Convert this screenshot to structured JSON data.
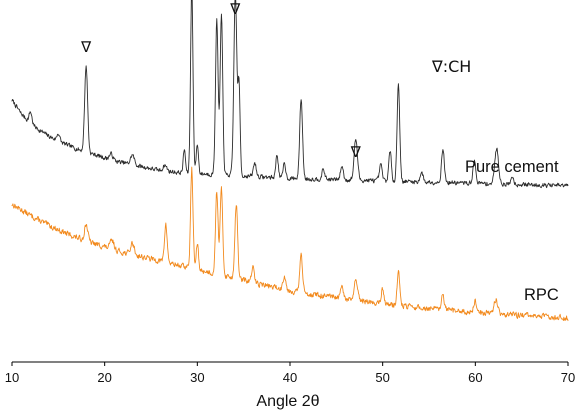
{
  "chart_data": {
    "type": "line",
    "xlabel": "Angle 2θ",
    "ylabel": "",
    "xlim": [
      10,
      70
    ],
    "x_ticks": [
      10,
      20,
      30,
      40,
      50,
      60,
      70
    ],
    "y_ticks_shown": false,
    "grid": false,
    "legend_note": "∇:CH",
    "marker_symbol": "∇",
    "marker_positions": [
      18.0,
      34.1,
      47.1
    ],
    "series": [
      {
        "name": "Pure cement",
        "color": "#2b2b2b",
        "baseline": [
          [
            10,
            100
          ],
          [
            11,
            86
          ],
          [
            12,
            76
          ],
          [
            13,
            69
          ],
          [
            14,
            63
          ],
          [
            15,
            58
          ],
          [
            16,
            54
          ],
          [
            17,
            50
          ],
          [
            18,
            47
          ],
          [
            19,
            44
          ],
          [
            20,
            41
          ],
          [
            21,
            38
          ],
          [
            22,
            36
          ],
          [
            23,
            34
          ],
          [
            24,
            32
          ],
          [
            25,
            30
          ],
          [
            26,
            28
          ],
          [
            27,
            27
          ],
          [
            28,
            26
          ],
          [
            29,
            25
          ],
          [
            30,
            25
          ],
          [
            32,
            24
          ],
          [
            34,
            23
          ],
          [
            36,
            22
          ],
          [
            38,
            21
          ],
          [
            40,
            20
          ],
          [
            42,
            19.5
          ],
          [
            44,
            19
          ],
          [
            46,
            18.5
          ],
          [
            48,
            18
          ],
          [
            50,
            17.5
          ],
          [
            52,
            17
          ],
          [
            54,
            16.5
          ],
          [
            56,
            16
          ],
          [
            58,
            15.5
          ],
          [
            60,
            15
          ],
          [
            62,
            14.5
          ],
          [
            64,
            14
          ],
          [
            66,
            13.5
          ],
          [
            68,
            13
          ],
          [
            70,
            12.5
          ]
        ],
        "peaks": [
          [
            12.0,
            12,
            0.15
          ],
          [
            15.0,
            8,
            0.15
          ],
          [
            18.0,
            88,
            0.16
          ],
          [
            20.7,
            6,
            0.2
          ],
          [
            23.0,
            10,
            0.2
          ],
          [
            26.5,
            6,
            0.2
          ],
          [
            28.6,
            24,
            0.12
          ],
          [
            29.4,
            190,
            0.13
          ],
          [
            30.0,
            30,
            0.12
          ],
          [
            32.1,
            158,
            0.14
          ],
          [
            32.6,
            162,
            0.14
          ],
          [
            34.1,
            186,
            0.16
          ],
          [
            34.5,
            90,
            0.12
          ],
          [
            36.2,
            14,
            0.15
          ],
          [
            38.6,
            24,
            0.13
          ],
          [
            39.4,
            16,
            0.13
          ],
          [
            41.2,
            82,
            0.15
          ],
          [
            43.6,
            10,
            0.15
          ],
          [
            45.6,
            14,
            0.15
          ],
          [
            47.1,
            42,
            0.18
          ],
          [
            49.8,
            16,
            0.15
          ],
          [
            50.8,
            30,
            0.14
          ],
          [
            51.7,
            100,
            0.14
          ],
          [
            54.2,
            10,
            0.15
          ],
          [
            56.5,
            34,
            0.15
          ],
          [
            59.9,
            22,
            0.16
          ],
          [
            62.3,
            36,
            0.2
          ],
          [
            64.0,
            8,
            0.15
          ]
        ],
        "noise": 4.0,
        "seed": 7
      },
      {
        "name": "RPC",
        "color": "#f28a1e",
        "baseline": [
          [
            10,
            90
          ],
          [
            12,
            82
          ],
          [
            14,
            75
          ],
          [
            16,
            69
          ],
          [
            18,
            64
          ],
          [
            20,
            60
          ],
          [
            22,
            56
          ],
          [
            24,
            53
          ],
          [
            26,
            50
          ],
          [
            28,
            47
          ],
          [
            30,
            44
          ],
          [
            32,
            41
          ],
          [
            34,
            38
          ],
          [
            36,
            35
          ],
          [
            38,
            32
          ],
          [
            40,
            29
          ],
          [
            42,
            27
          ],
          [
            44,
            25
          ],
          [
            46,
            23
          ],
          [
            48,
            21.5
          ],
          [
            50,
            20
          ],
          [
            52,
            18.5
          ],
          [
            54,
            17
          ],
          [
            56,
            15.8
          ],
          [
            58,
            14.8
          ],
          [
            60,
            13.8
          ],
          [
            62,
            13
          ],
          [
            64,
            12.2
          ],
          [
            66,
            11.5
          ],
          [
            68,
            10.8
          ],
          [
            70,
            10
          ]
        ],
        "peaks": [
          [
            18.0,
            12,
            0.18
          ],
          [
            20.8,
            6,
            0.2
          ],
          [
            23.0,
            8,
            0.2
          ],
          [
            26.6,
            26,
            0.15
          ],
          [
            29.4,
            70,
            0.13
          ],
          [
            30.0,
            18,
            0.12
          ],
          [
            32.1,
            58,
            0.14
          ],
          [
            32.6,
            60,
            0.14
          ],
          [
            34.2,
            52,
            0.15
          ],
          [
            36.0,
            10,
            0.15
          ],
          [
            39.4,
            10,
            0.15
          ],
          [
            41.2,
            26,
            0.15
          ],
          [
            45.6,
            8,
            0.15
          ],
          [
            47.1,
            14,
            0.18
          ],
          [
            50.0,
            10,
            0.15
          ],
          [
            51.7,
            24,
            0.14
          ],
          [
            56.5,
            10,
            0.15
          ],
          [
            60.0,
            8,
            0.16
          ],
          [
            62.2,
            10,
            0.2
          ]
        ],
        "noise": 3.6,
        "seed": 13
      }
    ]
  }
}
